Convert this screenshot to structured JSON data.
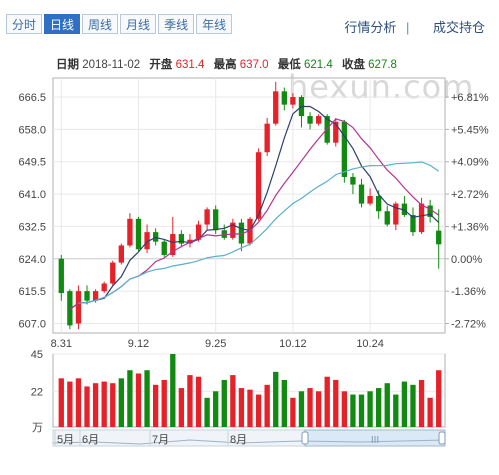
{
  "tabs": [
    {
      "label": "分时",
      "active": false
    },
    {
      "label": "日线",
      "active": true
    },
    {
      "label": "周线",
      "active": false
    },
    {
      "label": "月线",
      "active": false
    },
    {
      "label": "季线",
      "active": false
    },
    {
      "label": "年线",
      "active": false
    }
  ],
  "links": {
    "analysis": "行情分析",
    "separator": "|",
    "trades": "成交持仓"
  },
  "info": {
    "date_label": "日期",
    "date": "2018-11-02",
    "open_label": "开盘",
    "open": "631.4",
    "high_label": "最高",
    "high": "637.0",
    "low_label": "最低",
    "low": "621.4",
    "close_label": "收盘",
    "close": "627.8"
  },
  "watermark": "hexun.com",
  "chart_data": {
    "type": "candlestick",
    "y_ticks": [
      "666.5",
      "658.0",
      "649.5",
      "641.0",
      "632.5",
      "624.0",
      "615.5",
      "607.0"
    ],
    "y_tick_values": [
      666.5,
      658.0,
      649.5,
      641.0,
      632.5,
      624.0,
      615.5,
      607.0
    ],
    "pct_ticks": [
      "+6.81%",
      "+5.45%",
      "+4.09%",
      "+2.72%",
      "+1.36%",
      "0.00%",
      "-1.36%",
      "-2.72%"
    ],
    "baseline": 624.0,
    "ylim": [
      604.5,
      671.5
    ],
    "x_ticks": [
      "8.31",
      "9.12",
      "9.25",
      "10.12",
      "10.24"
    ],
    "x_tick_index": [
      0,
      9,
      18,
      27,
      36
    ],
    "candles": [
      [
        624.0,
        615.0,
        625.0,
        613.0
      ],
      [
        615.5,
        606.5,
        616.0,
        605.5
      ],
      [
        607.0,
        615.5,
        617.0,
        605.5
      ],
      [
        615.5,
        613.0,
        617.0,
        612.0
      ],
      [
        613.0,
        615.5,
        616.0,
        612.5
      ],
      [
        615.5,
        617.5,
        618.0,
        615.0
      ],
      [
        617.5,
        623.0,
        623.5,
        617.0
      ],
      [
        623.0,
        627.5,
        628.0,
        622.5
      ],
      [
        627.5,
        634.5,
        636.0,
        627.0
      ],
      [
        634.5,
        626.5,
        635.0,
        626.0
      ],
      [
        626.5,
        631.0,
        633.0,
        625.5
      ],
      [
        631.0,
        628.5,
        632.0,
        627.5
      ],
      [
        628.5,
        625.0,
        629.0,
        624.5
      ],
      [
        625.0,
        630.5,
        635.0,
        624.5
      ],
      [
        630.5,
        628.0,
        631.5,
        627.0
      ],
      [
        628.0,
        629.0,
        630.5,
        627.0
      ],
      [
        629.0,
        633.0,
        634.0,
        628.5
      ],
      [
        633.0,
        637.0,
        637.5,
        631.5
      ],
      [
        637.0,
        631.5,
        638.0,
        630.5
      ],
      [
        631.5,
        629.5,
        633.0,
        629.0
      ],
      [
        629.5,
        633.5,
        634.5,
        629.0
      ],
      [
        633.5,
        628.0,
        634.5,
        626.0
      ],
      [
        628.0,
        634.5,
        635.0,
        627.5
      ],
      [
        634.5,
        652.0,
        653.0,
        634.0
      ],
      [
        652.0,
        659.5,
        661.0,
        651.0
      ],
      [
        659.5,
        668.0,
        670.5,
        659.0
      ],
      [
        668.0,
        664.5,
        669.0,
        663.0
      ],
      [
        664.5,
        666.5,
        667.5,
        663.5
      ],
      [
        666.5,
        661.5,
        667.0,
        658.5
      ],
      [
        661.5,
        659.5,
        662.5,
        658.0
      ],
      [
        659.5,
        661.5,
        662.0,
        659.0
      ],
      [
        661.5,
        654.5,
        662.0,
        654.0
      ],
      [
        654.5,
        660.0,
        661.0,
        653.5
      ],
      [
        660.0,
        645.5,
        660.5,
        644.0
      ],
      [
        645.5,
        643.5,
        646.5,
        641.0
      ],
      [
        643.5,
        638.5,
        645.0,
        637.5
      ],
      [
        638.5,
        640.5,
        642.5,
        638.0
      ],
      [
        640.5,
        636.5,
        642.0,
        634.5
      ],
      [
        636.5,
        633.0,
        638.0,
        632.5
      ],
      [
        633.0,
        638.5,
        639.0,
        631.5
      ],
      [
        638.5,
        635.5,
        640.5,
        635.0
      ],
      [
        635.5,
        631.0,
        637.5,
        630.0
      ],
      [
        631.0,
        638.5,
        640.0,
        630.5
      ],
      [
        638.0,
        635.0,
        639.5,
        633.5
      ],
      [
        631.4,
        627.8,
        637.0,
        621.4
      ]
    ],
    "volume_ticks": [
      "45",
      "22",
      "万"
    ],
    "volume_tick_values": [
      45,
      22,
      0
    ],
    "volume_max": 45,
    "volumes": [
      [
        30,
        "u"
      ],
      [
        28,
        "u"
      ],
      [
        30,
        "u"
      ],
      [
        25,
        "u"
      ],
      [
        27,
        "u"
      ],
      [
        28,
        "u"
      ],
      [
        27,
        "u"
      ],
      [
        30,
        "d"
      ],
      [
        35,
        "d"
      ],
      [
        33,
        "u"
      ],
      [
        35,
        "d"
      ],
      [
        26,
        "u"
      ],
      [
        29,
        "u"
      ],
      [
        45,
        "d"
      ],
      [
        24,
        "u"
      ],
      [
        32,
        "u"
      ],
      [
        31,
        "u"
      ],
      [
        18,
        "d"
      ],
      [
        22,
        "d"
      ],
      [
        29,
        "d"
      ],
      [
        32,
        "u"
      ],
      [
        24,
        "u"
      ],
      [
        23,
        "u"
      ],
      [
        20,
        "u"
      ],
      [
        26,
        "u"
      ],
      [
        34,
        "d"
      ],
      [
        29,
        "d"
      ],
      [
        18,
        "u"
      ],
      [
        22,
        "d"
      ],
      [
        24,
        "u"
      ],
      [
        22,
        "u"
      ],
      [
        31,
        "u"
      ],
      [
        29,
        "u"
      ],
      [
        22,
        "u"
      ],
      [
        20,
        "d"
      ],
      [
        20,
        "d"
      ],
      [
        22,
        "d"
      ],
      [
        24,
        "d"
      ],
      [
        27,
        "d"
      ],
      [
        20,
        "d"
      ],
      [
        28,
        "d"
      ],
      [
        26,
        "d"
      ],
      [
        29,
        "u"
      ],
      [
        18,
        "u"
      ],
      [
        35,
        "u"
      ]
    ],
    "navigator_labels": [
      "5月",
      "6月",
      "7月",
      "8月"
    ],
    "colors": {
      "up": "#e5222a",
      "down": "#108a10",
      "ma_short": "#2b3f6e",
      "ma_mid": "#b4338f",
      "ma_long": "#5ab0cc",
      "grid": "#e8e8e8",
      "axis": "#b0b0b0"
    }
  }
}
